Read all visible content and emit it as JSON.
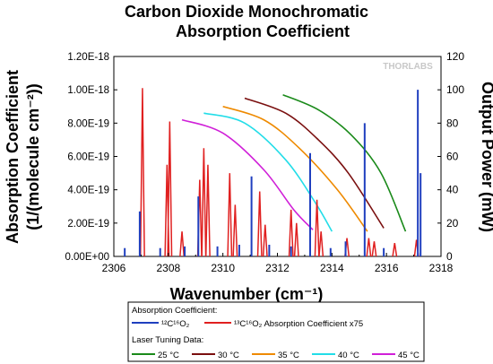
{
  "chart_data": {
    "type": "line",
    "title": [
      "Carbon Dioxide Monochromatic",
      "Absorption Coefficient"
    ],
    "xlabel": "Wavenumber (cm⁻¹)",
    "ylabel_left": [
      "Absorption Coefficient",
      "(1/(molecule cm⁻²))"
    ],
    "ylabel_right": "Output Power (mW)",
    "watermark": "THORLABS",
    "xlim": [
      2306,
      2318
    ],
    "ylim_left": [
      0,
      1.2e-18
    ],
    "ylim_right": [
      0,
      120
    ],
    "x_ticks": [
      "2306",
      "2308",
      "2310",
      "2312",
      "2314",
      "2316",
      "2318"
    ],
    "y_left_ticks": [
      "0.00E+00",
      "2.00E-19",
      "4.00E-19",
      "6.00E-19",
      "8.00E-19",
      "1.00E-18",
      "1.20E-18"
    ],
    "y_right_ticks": [
      "0",
      "20",
      "40",
      "60",
      "80",
      "100",
      "120"
    ],
    "legend": {
      "absorption_header": "Absorption Coefficient:",
      "absorption_items": [
        {
          "label": "¹²C¹⁶O₂",
          "color": "#1f3fbf"
        },
        {
          "label": "¹³C¹⁶O₂ Absorption Coefficient x75",
          "color": "#e02020"
        }
      ],
      "laser_header": "Laser Tuning Data:",
      "laser_items": [
        {
          "label": "25 °C",
          "color": "#1a8a1a"
        },
        {
          "label": "30 °C",
          "color": "#7a0f0f"
        },
        {
          "label": "35 °C",
          "color": "#ee8a00"
        },
        {
          "label": "40 °C",
          "color": "#22dde8"
        },
        {
          "label": "45 °C",
          "color": "#d020d8"
        }
      ]
    },
    "series_absorption": [
      {
        "name": "¹²C¹⁶O₂",
        "color": "#1f3fbf",
        "lines": [
          [
            2306.4,
            5e-20
          ],
          [
            2306.95,
            2.7e-19
          ],
          [
            2307.7,
            5e-20
          ],
          [
            2308.6,
            6e-20
          ],
          [
            2309.1,
            3.6e-19
          ],
          [
            2309.8,
            6e-20
          ],
          [
            2310.6,
            7e-20
          ],
          [
            2311.05,
            4.8e-19
          ],
          [
            2311.7,
            7e-20
          ],
          [
            2312.5,
            6e-20
          ],
          [
            2313.2,
            6.2e-19
          ],
          [
            2313.95,
            5e-20
          ],
          [
            2314.5,
            9e-20
          ],
          [
            2315.2,
            8e-19
          ],
          [
            2315.9,
            5e-20
          ],
          [
            2317.15,
            1e-18
          ],
          [
            2317.25,
            5e-19
          ]
        ]
      },
      {
        "name": "¹³C¹⁶O₂ Absorption Coefficient x75",
        "color": "#e02020",
        "peaks": [
          [
            2307.05,
            1.01e-18
          ],
          [
            2308.05,
            8.1e-19
          ],
          [
            2307.95,
            5.5e-19
          ],
          [
            2308.5,
            1.5e-19
          ],
          [
            2309.3,
            6.5e-19
          ],
          [
            2309.15,
            4.6e-19
          ],
          [
            2309.45,
            5.5e-19
          ],
          [
            2310.25,
            5e-19
          ],
          [
            2310.45,
            3.1e-19
          ],
          [
            2311.35,
            3.9e-19
          ],
          [
            2311.55,
            1.9e-19
          ],
          [
            2312.5,
            2.8e-19
          ],
          [
            2312.7,
            2e-19
          ],
          [
            2313.45,
            3.4e-19
          ],
          [
            2313.6,
            1.5e-19
          ],
          [
            2314.55,
            1.1e-19
          ],
          [
            2315.35,
            1.1e-19
          ],
          [
            2315.55,
            9e-20
          ],
          [
            2316.3,
            8e-20
          ],
          [
            2317.1,
            1e-19
          ]
        ]
      }
    ],
    "series_laser": [
      {
        "name": "25 °C",
        "color": "#1a8a1a",
        "x": [
          2312.2,
          2313.5,
          2314.7,
          2315.8,
          2316.7
        ],
        "y": [
          97,
          88,
          73,
          50,
          15
        ]
      },
      {
        "name": "30 °C",
        "color": "#7a0f0f",
        "x": [
          2310.8,
          2312.3,
          2313.5,
          2314.6,
          2315.9
        ],
        "y": [
          95,
          86,
          70,
          50,
          17
        ]
      },
      {
        "name": "35 °C",
        "color": "#ee8a00",
        "x": [
          2310.0,
          2311.5,
          2312.8,
          2314.2,
          2315.3
        ],
        "y": [
          90,
          82,
          65,
          40,
          15
        ]
      },
      {
        "name": "40 °C",
        "color": "#22dde8",
        "x": [
          2309.3,
          2310.8,
          2312.3,
          2313.4,
          2314.0
        ],
        "y": [
          86,
          80,
          58,
          32,
          15
        ]
      },
      {
        "name": "45 °C",
        "color": "#d020d8",
        "x": [
          2308.5,
          2310.0,
          2311.5,
          2312.6,
          2313.3
        ],
        "y": [
          82,
          74,
          52,
          28,
          16
        ]
      }
    ]
  }
}
